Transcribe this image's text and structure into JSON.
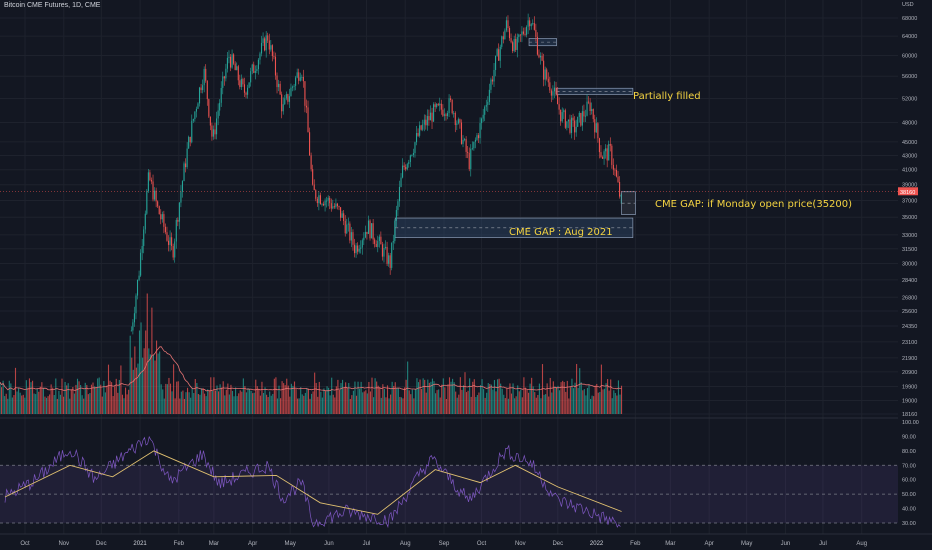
{
  "header": {
    "title": "Bitcoin CME Futures, 1D, CME"
  },
  "colors": {
    "up": "#26a69a",
    "down": "#ef5350",
    "rsi": "#7e57c2",
    "rsi_ma": "#e0c070",
    "vol_ma": "#e57373",
    "annotation": "#f5d442",
    "box_blue": "#2e4a6b",
    "box_gray": "#3a3e4a"
  },
  "annotations": {
    "partial": "Partially filled",
    "monday": "CME GAP: if Monday open price(35200)",
    "aug_gap": "CME GAP : Aug 2021"
  },
  "chart_data": {
    "type": "candlestick",
    "log_scale": true,
    "price_axis_ticks": [
      "68000",
      "64000",
      "60000",
      "56000",
      "52000",
      "48000",
      "45000",
      "43000",
      "41000",
      "39000",
      "37000",
      "35000",
      "33000",
      "31500",
      "30000",
      "28400",
      "26800",
      "25600",
      "24350",
      "23100",
      "21900",
      "20900",
      "19900",
      "19000",
      "18160"
    ],
    "price_axis_top": "USD",
    "current_price_label": "38160",
    "rsi_axis_ticks": [
      "100.00",
      "90.00",
      "80.00",
      "70.00",
      "60.00",
      "50.00",
      "40.00",
      "30.00"
    ],
    "x_ticks": [
      "Oct",
      "Nov",
      "Dec",
      "2021",
      "Feb",
      "Mar",
      "Apr",
      "May",
      "Jun",
      "Jul",
      "Aug",
      "Sep",
      "Oct",
      "Nov",
      "Dec",
      "2022",
      "Feb",
      "Mar",
      "Apr",
      "May",
      "Jun",
      "Jul",
      "Aug"
    ],
    "price_path": [
      [
        "2020-12-25",
        24000
      ],
      [
        "2020-12-31",
        29000
      ],
      [
        "2021-01-08",
        40000
      ],
      [
        "2021-01-15",
        36000
      ],
      [
        "2021-01-27",
        31000
      ],
      [
        "2021-02-08",
        44000
      ],
      [
        "2021-02-21",
        57000
      ],
      [
        "2021-02-28",
        45000
      ],
      [
        "2021-03-13",
        60000
      ],
      [
        "2021-03-25",
        53000
      ],
      [
        "2021-04-13",
        64000
      ],
      [
        "2021-04-25",
        50000
      ],
      [
        "2021-05-10",
        58000
      ],
      [
        "2021-05-19",
        38000
      ],
      [
        "2021-05-31",
        37000
      ],
      [
        "2021-06-10",
        35500
      ],
      [
        "2021-06-22",
        31500
      ],
      [
        "2021-07-02",
        34000
      ],
      [
        "2021-07-20",
        30000
      ],
      [
        "2021-07-30",
        41000
      ],
      [
        "2021-08-14",
        47000
      ],
      [
        "2021-08-23",
        49500
      ],
      [
        "2021-09-07",
        51000
      ],
      [
        "2021-09-21",
        42000
      ],
      [
        "2021-10-01",
        48000
      ],
      [
        "2021-10-15",
        61000
      ],
      [
        "2021-10-21",
        66500
      ],
      [
        "2021-10-28",
        61000
      ],
      [
        "2021-11-09",
        68500
      ],
      [
        "2021-11-19",
        57000
      ],
      [
        "2021-11-26",
        54000
      ],
      [
        "2021-12-04",
        49000
      ],
      [
        "2021-12-14",
        47000
      ],
      [
        "2021-12-27",
        51000
      ],
      [
        "2022-01-05",
        43000
      ],
      [
        "2022-01-12",
        43500
      ],
      [
        "2022-01-21",
        36500
      ]
    ],
    "rsi_path": [
      [
        "2020-09-15",
        48
      ],
      [
        "2020-10-10",
        60
      ],
      [
        "2020-11-06",
        82
      ],
      [
        "2020-11-26",
        60
      ],
      [
        "2020-12-18",
        76
      ],
      [
        "2021-01-08",
        90
      ],
      [
        "2021-01-25",
        58
      ],
      [
        "2021-02-20",
        78
      ],
      [
        "2021-03-05",
        57
      ],
      [
        "2021-04-13",
        70
      ],
      [
        "2021-04-25",
        47
      ],
      [
        "2021-05-10",
        58
      ],
      [
        "2021-05-19",
        30
      ],
      [
        "2021-06-15",
        38
      ],
      [
        "2021-07-20",
        32
      ],
      [
        "2021-08-14",
        66
      ],
      [
        "2021-08-23",
        74
      ],
      [
        "2021-09-21",
        45
      ],
      [
        "2021-10-20",
        80
      ],
      [
        "2021-11-09",
        72
      ],
      [
        "2021-11-30",
        46
      ],
      [
        "2021-12-20",
        40
      ],
      [
        "2022-01-21",
        28
      ]
    ],
    "rsi_ma_path": [
      [
        "2020-09-15",
        48
      ],
      [
        "2020-11-06",
        70
      ],
      [
        "2020-12-10",
        62
      ],
      [
        "2021-01-12",
        80
      ],
      [
        "2021-03-01",
        62
      ],
      [
        "2021-04-20",
        63
      ],
      [
        "2021-05-25",
        44
      ],
      [
        "2021-07-10",
        36
      ],
      [
        "2021-08-25",
        67
      ],
      [
        "2021-09-30",
        58
      ],
      [
        "2021-10-28",
        70
      ],
      [
        "2021-12-01",
        55
      ],
      [
        "2022-01-21",
        38
      ]
    ],
    "gaps": [
      {
        "from": "2021-11-08",
        "to": "2021-11-30",
        "low": 62000,
        "high": 63500
      },
      {
        "from": "2021-11-30",
        "to": "2022-01-30",
        "low": 52700,
        "high": 53800
      },
      {
        "from": "2021-07-24",
        "to": "2022-01-30",
        "low": 32700,
        "high": 34900
      },
      {
        "from": "2022-01-21",
        "to": "2022-02-01",
        "low": 35300,
        "high": 38100
      }
    ]
  }
}
